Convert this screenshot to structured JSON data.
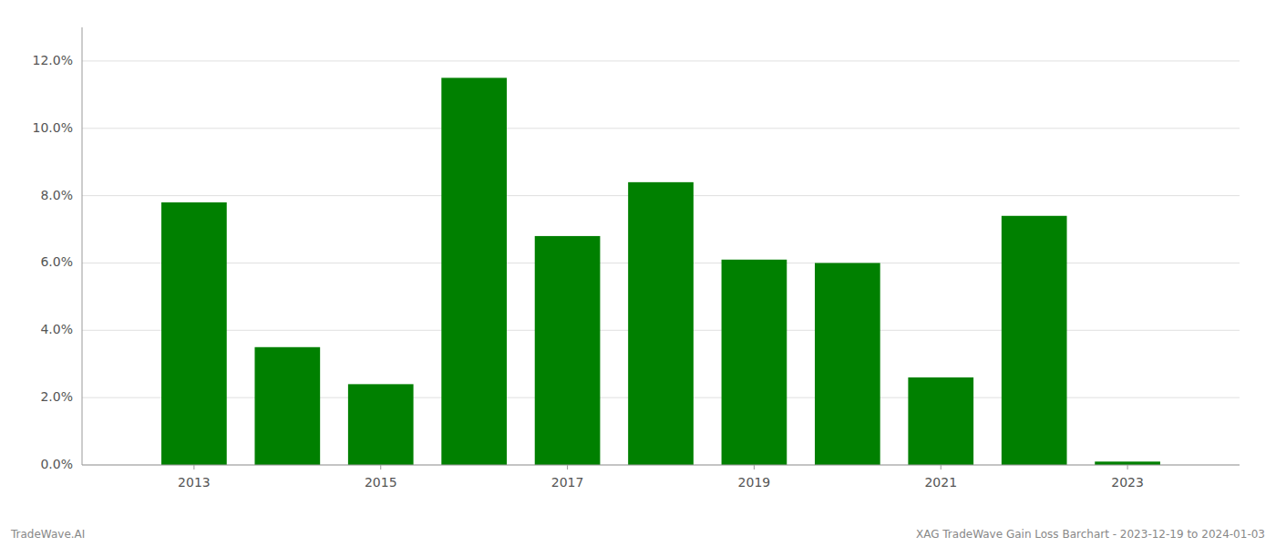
{
  "chart_data": {
    "type": "bar",
    "x": [
      2013,
      2014,
      2015,
      2016,
      2017,
      2018,
      2019,
      2020,
      2021,
      2022,
      2023
    ],
    "values": [
      0.078,
      0.035,
      0.024,
      0.115,
      0.068,
      0.084,
      0.061,
      0.06,
      0.026,
      0.074,
      0.001
    ],
    "color": "#008000",
    "xlim": [
      2011.8,
      2024.2
    ],
    "xticks": [
      2013,
      2015,
      2017,
      2019,
      2021,
      2023
    ],
    "ylim": [
      0,
      0.13
    ],
    "yticks": [
      {
        "value": 0.0,
        "label": "0.0%"
      },
      {
        "value": 0.02,
        "label": "2.0%"
      },
      {
        "value": 0.04,
        "label": "4.0%"
      },
      {
        "value": 0.06,
        "label": "6.0%"
      },
      {
        "value": 0.08,
        "label": "8.0%"
      },
      {
        "value": 0.1,
        "label": "10.0%"
      },
      {
        "value": 0.12,
        "label": "12.0%"
      }
    ],
    "grid": true,
    "annotations": [
      "TradeWave.AI",
      "XAG TradeWave Gain Loss Barchart - 2023-12-19 to 2024-01-03"
    ]
  }
}
